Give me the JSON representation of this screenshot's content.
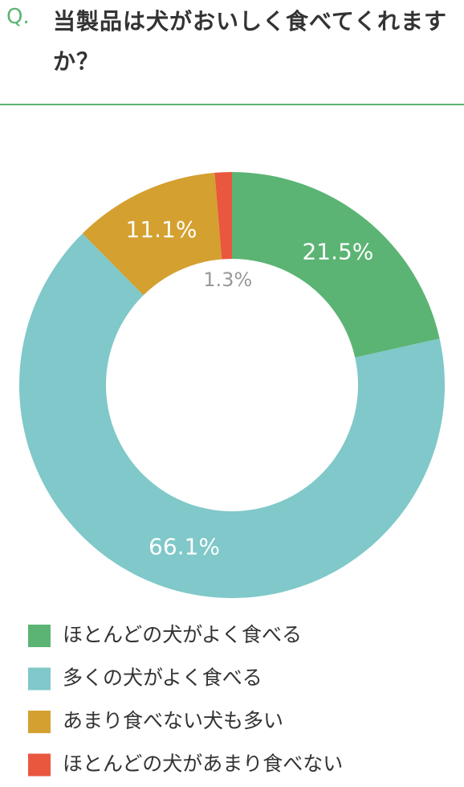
{
  "q_mark": "Q.",
  "chart_data": {
    "type": "pie",
    "title": "当製品は犬がおいしく食べてくれますか？",
    "categories": [
      "ほとんどの犬がよく食べる",
      "多くの犬がよく食べる",
      "あまり食べない犬も多い",
      "ほとんどの犬があまり食べない"
    ],
    "values": [
      21.5,
      66.1,
      11.1,
      1.3
    ],
    "value_labels": [
      "21.5%",
      "66.1%",
      "11.1%",
      "1.3%"
    ],
    "colors": [
      "#5bb473",
      "#80c8c9",
      "#d4a030",
      "#e9573f"
    ],
    "donut": true
  }
}
